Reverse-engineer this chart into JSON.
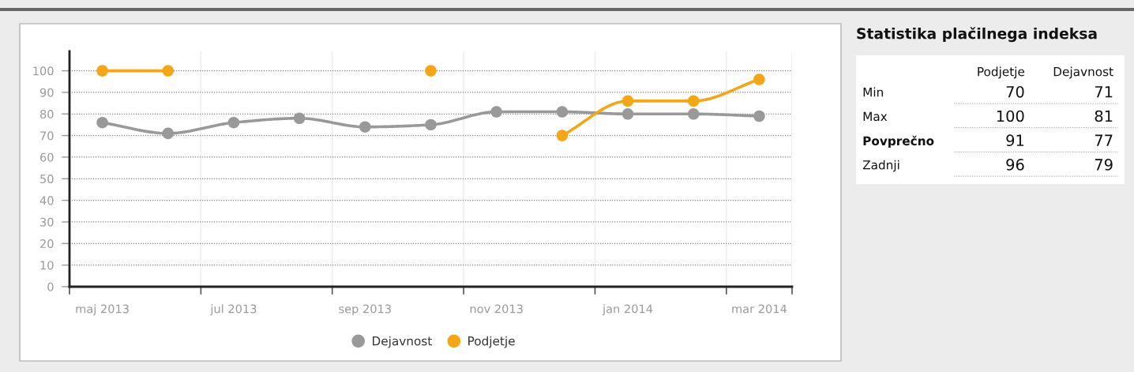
{
  "chart_data": [
    {
      "type": "line",
      "categories": [
        "maj 2013",
        null,
        "jul 2013",
        null,
        "sep 2013",
        null,
        "nov 2013",
        null,
        "jan 2014",
        null,
        "mar 2014"
      ],
      "series": [
        {
          "name": "Dejavnost",
          "color": "#999999",
          "values": [
            76,
            71,
            76,
            78,
            74,
            75,
            81,
            81,
            80,
            80,
            79
          ]
        },
        {
          "name": "Podjetje",
          "color": "#f5a614",
          "values": [
            100,
            100,
            null,
            null,
            null,
            100,
            null,
            70,
            86,
            86,
            96
          ]
        }
      ],
      "ylim": [
        0,
        109
      ],
      "yticks": [
        0,
        10,
        20,
        30,
        40,
        50,
        60,
        70,
        80,
        90,
        100
      ],
      "grid": true,
      "legend": "bottom",
      "marker": "circle",
      "line_style": "solid"
    },
    {
      "type": "other",
      "title": "Statistika plačilnega indeksa",
      "categories": [
        "Min",
        "Max",
        "Povprečno",
        "Zadnji"
      ],
      "series": [
        {
          "name": "Podjetje",
          "values": [
            70,
            100,
            91,
            96
          ]
        },
        {
          "name": "Dejavnost",
          "values": [
            71,
            81,
            77,
            79
          ]
        }
      ],
      "data_labels": true
    }
  ]
}
